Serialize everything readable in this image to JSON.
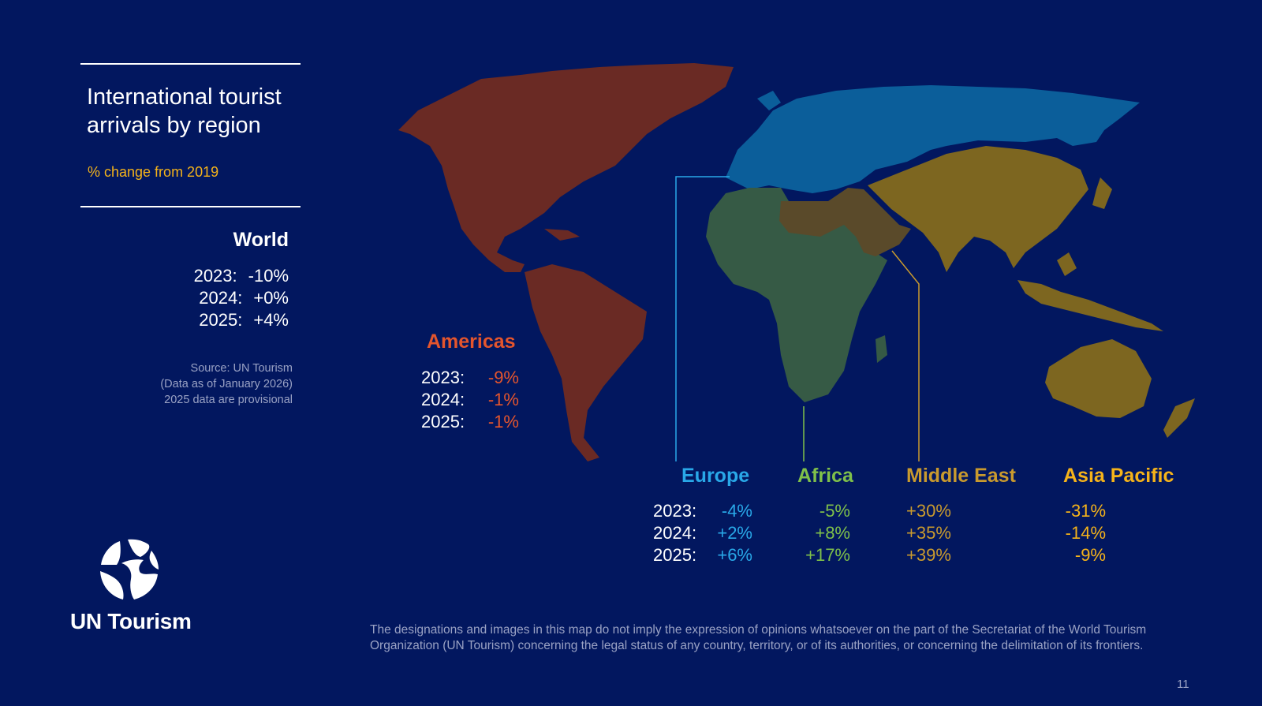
{
  "header": {
    "title_line1": "International tourist",
    "title_line2": "arrivals by region",
    "subtitle": "% change from 2019"
  },
  "world": {
    "name": "World",
    "rows": [
      {
        "year": "2023:",
        "value": "-10%"
      },
      {
        "year": "2024:",
        "value": "+0%"
      },
      {
        "year": "2025:",
        "value": "+4%"
      }
    ]
  },
  "source": {
    "line1": "Source: UN Tourism",
    "line2": "(Data as of January 2026)",
    "line3": "2025 data are provisional"
  },
  "regions": {
    "americas": {
      "name": "Americas",
      "color": "#e4552d",
      "fill": "#6a2a24",
      "rows": [
        {
          "year": "2023:",
          "value": "-9%"
        },
        {
          "year": "2024:",
          "value": "-1%"
        },
        {
          "year": "2025:",
          "value": "-1%"
        }
      ]
    },
    "europe": {
      "name": "Europe",
      "color": "#29a8e8",
      "fill": "#0b5e9a",
      "rows": [
        {
          "year": "2023:",
          "value": "-4%"
        },
        {
          "year": "2024:",
          "value": "+2%"
        },
        {
          "year": "2025:",
          "value": "+6%"
        }
      ]
    },
    "africa": {
      "name": "Africa",
      "color": "#7fc04a",
      "fill": "#365a45",
      "values": [
        "-5%",
        "+8%",
        "+17%"
      ]
    },
    "middle_east": {
      "name": "Middle East",
      "color": "#c99a2e",
      "fill": "#5a4a2a",
      "values": [
        "+30%",
        "+35%",
        "+39%"
      ]
    },
    "asia_pacific": {
      "name": "Asia Pacific",
      "color": "#f5b31a",
      "fill": "#7d6620",
      "values": [
        "-31%",
        "-14%",
        "-9%"
      ]
    }
  },
  "brand": {
    "name": "UN Tourism",
    "logo_icon": "globe-logo-icon"
  },
  "disclaimer": {
    "line1": "The designations and images in this map do not imply the expression of opinions whatsoever on the part of the Secretariat of the World Tourism",
    "line2": "Organization (UN Tourism) concerning the legal status of any country, territory, or of its authorities, or concerning the delimitation of its frontiers."
  },
  "page_number": "11"
}
